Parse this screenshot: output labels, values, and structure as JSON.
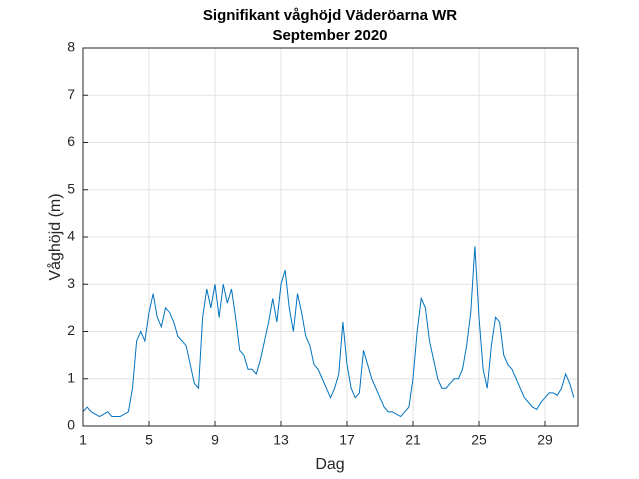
{
  "chart_data": {
    "type": "line",
    "title": "Signifikant våghöjd Väderöarna WR",
    "subtitle": "September 2020",
    "x_label": "Dag",
    "y_label": "Våghöjd (m)",
    "color": "#0072bd",
    "grid": true,
    "xlim": [
      1,
      31
    ],
    "ylim": [
      0,
      8
    ],
    "xticks": [
      1,
      5,
      9,
      13,
      17,
      21,
      25,
      29
    ],
    "yticks": [
      0,
      1,
      2,
      3,
      4,
      5,
      6,
      7,
      8
    ],
    "x": [
      1,
      1.25,
      1.5,
      1.75,
      2,
      2.25,
      2.5,
      2.75,
      3,
      3.25,
      3.5,
      3.75,
      4,
      4.25,
      4.5,
      4.75,
      5,
      5.25,
      5.5,
      5.75,
      6,
      6.25,
      6.5,
      6.75,
      7,
      7.25,
      7.5,
      7.75,
      8,
      8.25,
      8.5,
      8.75,
      9,
      9.25,
      9.5,
      9.75,
      10,
      10.25,
      10.5,
      10.75,
      11,
      11.25,
      11.5,
      11.75,
      12,
      12.25,
      12.5,
      12.75,
      13,
      13.25,
      13.5,
      13.75,
      14,
      14.25,
      14.5,
      14.75,
      15,
      15.25,
      15.5,
      15.75,
      16,
      16.25,
      16.5,
      16.75,
      17,
      17.25,
      17.5,
      17.75,
      18,
      18.25,
      18.5,
      18.75,
      19,
      19.25,
      19.5,
      19.75,
      20,
      20.25,
      20.5,
      20.75,
      21,
      21.25,
      21.5,
      21.75,
      22,
      22.25,
      22.5,
      22.75,
      23,
      23.25,
      23.5,
      23.75,
      24,
      24.25,
      24.5,
      24.75,
      25,
      25.25,
      25.5,
      25.75,
      26,
      26.25,
      26.5,
      26.75,
      27,
      27.25,
      27.5,
      27.75,
      28,
      28.25,
      28.5,
      28.75,
      29,
      29.25,
      29.5,
      29.75,
      30,
      30.25,
      30.5,
      30.75
    ],
    "values": [
      0.3,
      0.4,
      0.3,
      0.25,
      0.2,
      0.25,
      0.3,
      0.2,
      0.2,
      0.2,
      0.25,
      0.3,
      0.8,
      1.8,
      2.0,
      1.8,
      2.4,
      2.8,
      2.3,
      2.1,
      2.5,
      2.4,
      2.2,
      1.9,
      1.8,
      1.7,
      1.3,
      0.9,
      0.8,
      2.3,
      2.9,
      2.5,
      3.0,
      2.3,
      3.0,
      2.6,
      2.9,
      2.3,
      1.6,
      1.5,
      1.2,
      1.2,
      1.1,
      1.4,
      1.8,
      2.2,
      2.7,
      2.2,
      3.0,
      3.3,
      2.5,
      2.0,
      2.8,
      2.4,
      1.9,
      1.7,
      1.3,
      1.2,
      1.0,
      0.8,
      0.6,
      0.8,
      1.1,
      2.2,
      1.3,
      0.8,
      0.6,
      0.7,
      1.6,
      1.3,
      1.0,
      0.8,
      0.6,
      0.4,
      0.3,
      0.3,
      0.25,
      0.2,
      0.3,
      0.4,
      1.0,
      2.0,
      2.7,
      2.5,
      1.8,
      1.4,
      1.0,
      0.8,
      0.8,
      0.9,
      1.0,
      1.0,
      1.2,
      1.7,
      2.4,
      3.8,
      2.3,
      1.2,
      0.8,
      1.7,
      2.3,
      2.2,
      1.5,
      1.3,
      1.2,
      1.0,
      0.8,
      0.6,
      0.5,
      0.4,
      0.35,
      0.5,
      0.6,
      0.7,
      0.7,
      0.65,
      0.8,
      1.1,
      0.9,
      0.6
    ]
  }
}
